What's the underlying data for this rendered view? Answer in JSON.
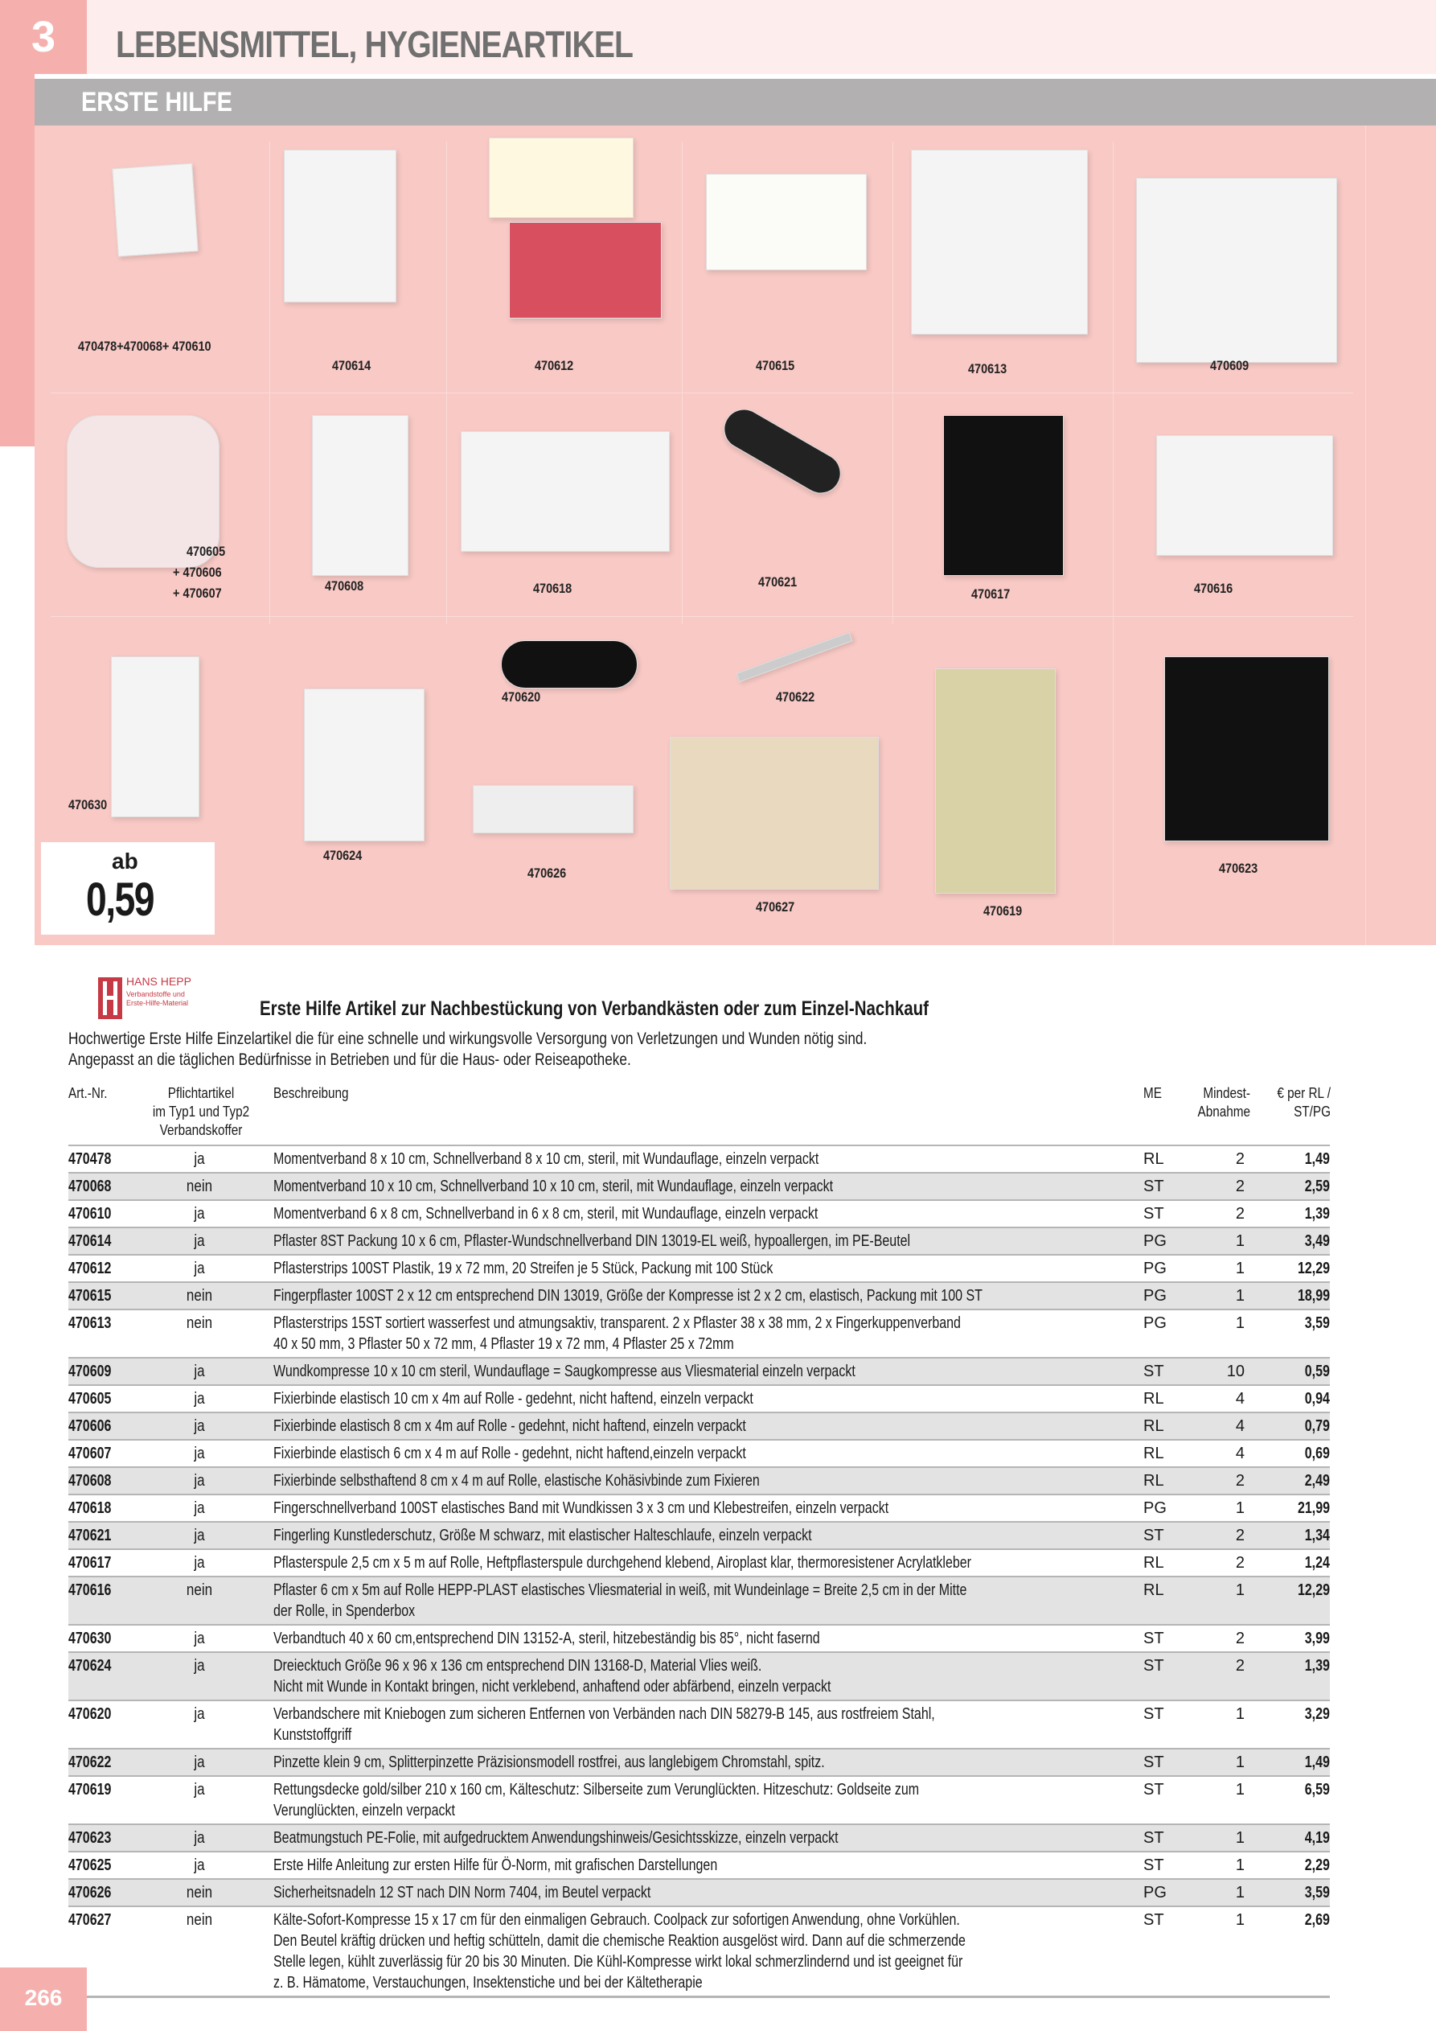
{
  "header": {
    "chapter_number": "3",
    "chapter_title": "LEBENSMITTEL, HYGIENEARTIKEL",
    "section_title": "ERSTE HILFE"
  },
  "colors": {
    "accent_pink": "#f5b0ae",
    "grid_pink": "#f8c9c5",
    "section_gray": "#b2b0b0",
    "row_shade": "#e3e3e3"
  },
  "photo_labels": {
    "r1a": "470478+470068+ 470610",
    "r1b": "470614",
    "r1c": "470612",
    "r1d": "470615",
    "r1e": "470613",
    "r1f": "470609",
    "r2a1": "470605",
    "r2a2": "+ 470606",
    "r2a3": "+ 470607",
    "r2b": "470608",
    "r2c": "470618",
    "r2d": "470621",
    "r2e": "470617",
    "r2f": "470616",
    "r3a": "470630",
    "r3b": "470624",
    "r3c": "470620",
    "r3d": "470622",
    "r3e": "470626",
    "r3f": "470627",
    "r3g": "470619",
    "r3h": "470623"
  },
  "price_badge": {
    "prefix": "ab",
    "value": "0,59"
  },
  "brand": {
    "name": "HANS HEPP",
    "tagline": "Verbandstoffe und Erste-Hilfe-Material"
  },
  "intro": {
    "title": "Erste Hilfe Artikel zur Nachbestückung von Verbandkästen oder zum Einzel-Nachkauf",
    "line1": "Hochwertige Erste Hilfe Einzelartikel die für eine schnelle und wirkungsvolle Versorgung von Verletzungen und Wunden nötig sind.",
    "line2": "Angepasst an die täglichen Bedürfnisse in Betrieben und für die Haus- oder Reiseapotheke."
  },
  "table": {
    "headers": {
      "art": "Art.-Nr.",
      "pf1": "Pflichtartikel",
      "pf2": "im Typ1 und Typ2",
      "pf3": "Verbandskoffer",
      "desc": "Beschreibung",
      "me": "ME",
      "min1": "Mindest-",
      "min2": "Abnahme",
      "pr1": "€ per RL /",
      "pr2": "ST/PG"
    },
    "rows": [
      {
        "art": "470478",
        "pf": "ja",
        "desc": [
          "Momentverband 8 x 10 cm, Schnellverband 8  x 10 cm, steril, mit Wundauflage, einzeln verpackt"
        ],
        "me": "RL",
        "min": "2",
        "price": "1,49"
      },
      {
        "art": "470068",
        "pf": "nein",
        "desc": [
          "Momentverband 10 x 10 cm, Schnellverband 10  x 10 cm, steril, mit Wundauflage, einzeln verpackt"
        ],
        "me": "ST",
        "min": "2",
        "price": "2,59"
      },
      {
        "art": "470610",
        "pf": "ja",
        "desc": [
          "Momentverband 6 x  8 cm, Schnellverband in 6  x 8 cm, steril, mit Wundauflage, einzeln verpackt"
        ],
        "me": "ST",
        "min": "2",
        "price": "1,39"
      },
      {
        "art": "470614",
        "pf": "ja",
        "desc": [
          "Pflaster 8ST Packung 10 x 6 cm, Pflaster-Wundschnellverband DIN 13019-EL weiß, hypoallergen, im PE-Beutel"
        ],
        "me": "PG",
        "min": "1",
        "price": "3,49"
      },
      {
        "art": "470612",
        "pf": "ja",
        "desc": [
          "Pflasterstrips 100ST Plastik, 19 x 72 mm, 20 Streifen je 5 Stück, Packung mit 100 Stück"
        ],
        "me": "PG",
        "min": "1",
        "price": "12,29"
      },
      {
        "art": "470615",
        "pf": "nein",
        "desc": [
          "Fingerpflaster 100ST 2 x 12 cm entsprechend DIN 13019, Größe der Kompresse ist 2 x 2 cm, elastisch, Packung mit 100 ST"
        ],
        "me": "PG",
        "min": "1",
        "price": "18,99"
      },
      {
        "art": "470613",
        "pf": "nein",
        "desc": [
          "Pflasterstrips 15ST sortiert wasserfest und atmungsaktiv, transparent. 2 x Pflaster 38 x 38 mm, 2 x Fingerkuppenverband",
          "40 x 50 mm, 3 Pflaster 50 x 72 mm, 4 Pflaster 19 x 72 mm, 4 Pflaster 25 x 72mm"
        ],
        "me": "PG",
        "min": "1",
        "price": "3,59"
      },
      {
        "art": "470609",
        "pf": "ja",
        "desc": [
          "Wundkompresse 10 x 10 cm steril, Wundauflage = Saugkompresse aus Vliesmaterial einzeln verpackt"
        ],
        "me": "ST",
        "min": "10",
        "price": "0,59"
      },
      {
        "art": "470605",
        "pf": "ja",
        "desc": [
          "Fixierbinde elastisch 10 cm x 4m auf Rolle  - gedehnt, nicht haftend, einzeln verpackt"
        ],
        "me": "RL",
        "min": "4",
        "price": "0,94"
      },
      {
        "art": "470606",
        "pf": "ja",
        "desc": [
          "Fixierbinde elastisch 8 cm x 4m auf Rolle  - gedehnt, nicht haftend, einzeln verpackt"
        ],
        "me": "RL",
        "min": "4",
        "price": "0,79"
      },
      {
        "art": "470607",
        "pf": "ja",
        "desc": [
          "Fixierbinde elastisch 6 cm x 4 m auf Rolle  - gedehnt, nicht haftend,einzeln verpackt"
        ],
        "me": "RL",
        "min": "4",
        "price": "0,69"
      },
      {
        "art": "470608",
        "pf": "ja",
        "desc": [
          "Fixierbinde selbsthaftend 8 cm x 4 m auf Rolle, elastische Kohäsivbinde zum Fixieren"
        ],
        "me": "RL",
        "min": "2",
        "price": "2,49"
      },
      {
        "art": "470618",
        "pf": "ja",
        "desc": [
          "Fingerschnellverband 100ST elastisches Band mit Wundkissen 3 x 3 cm und Klebestreifen, einzeln verpackt"
        ],
        "me": "PG",
        "min": "1",
        "price": "21,99"
      },
      {
        "art": "470621",
        "pf": "ja",
        "desc": [
          "Fingerling Kunstlederschutz, Größe M schwarz, mit elastischer Halteschlaufe, einzeln verpackt"
        ],
        "me": "ST",
        "min": "2",
        "price": "1,34"
      },
      {
        "art": "470617",
        "pf": "ja",
        "desc": [
          "Pflasterspule 2,5 cm x 5 m auf Rolle, Heftpflasterspule durchgehend klebend, Airoplast klar, thermoresistener Acrylatkleber"
        ],
        "me": "RL",
        "min": "2",
        "price": "1,24"
      },
      {
        "art": "470616",
        "pf": "nein",
        "desc": [
          "Pflaster 6 cm x 5m auf Rolle HEPP-PLAST elastisches Vliesmaterial in weiß, mit Wundeinlage = Breite 2,5 cm in der Mitte",
          "der Rolle, in Spenderbox"
        ],
        "me": "RL",
        "min": "1",
        "price": "12,29"
      },
      {
        "art": "470630",
        "pf": "ja",
        "desc": [
          "Verbandtuch 40 x 60 cm,entsprechend  DIN 13152-A, steril, hitzebeständig bis 85°, nicht fasernd"
        ],
        "me": "ST",
        "min": "2",
        "price": "3,99"
      },
      {
        "art": "470624",
        "pf": "ja",
        "desc": [
          "Dreiecktuch Größe 96 x 96 x 136 cm entsprechend DIN 13168-D, Material Vlies weiß.",
          "Nicht mit Wunde in Kontakt bringen, nicht verklebend, anhaftend oder abfärbend, einzeln verpackt"
        ],
        "me": "ST",
        "min": "2",
        "price": "1,39"
      },
      {
        "art": "470620",
        "pf": "ja",
        "desc": [
          "Verbandschere mit Kniebogen zum sicheren Entfernen von Verbänden nach DIN 58279-B 145, aus rostfreiem Stahl,",
          "Kunststoffgriff"
        ],
        "me": "ST",
        "min": "1",
        "price": "3,29"
      },
      {
        "art": "470622",
        "pf": "ja",
        "desc": [
          "Pinzette klein 9 cm, Splitterpinzette Präzisionsmodell rostfrei, aus langlebigem Chromstahl, spitz."
        ],
        "me": "ST",
        "min": "1",
        "price": "1,49"
      },
      {
        "art": "470619",
        "pf": "ja",
        "desc": [
          "Rettungsdecke gold/silber 210 x 160 cm, Kälteschutz: Silberseite zum Verunglückten. Hitzeschutz: Goldseite zum",
          "Verunglückten, einzeln verpackt"
        ],
        "me": "ST",
        "min": "1",
        "price": "6,59"
      },
      {
        "art": "470623",
        "pf": "ja",
        "desc": [
          "Beatmungstuch PE-Folie, mit aufgedrucktem Anwendungshinweis/Gesichtsskizze, einzeln verpackt"
        ],
        "me": "ST",
        "min": "1",
        "price": "4,19"
      },
      {
        "art": "470625",
        "pf": "ja",
        "desc": [
          "Erste Hilfe Anleitung zur ersten Hilfe für Ö-Norm, mit grafischen Darstellungen"
        ],
        "me": "ST",
        "min": "1",
        "price": "2,29"
      },
      {
        "art": "470626",
        "pf": "nein",
        "desc": [
          "Sicherheitsnadeln 12 ST nach DIN Norm 7404, im Beutel verpackt"
        ],
        "me": "PG",
        "min": "1",
        "price": "3,59"
      },
      {
        "art": "470627",
        "pf": "nein",
        "desc": [
          "Kälte-Sofort-Kompresse 15 x 17 cm für den einmaligen Gebrauch. Coolpack zur sofortigen Anwendung, ohne Vorkühlen.",
          "Den Beutel kräftig drücken und heftig schütteln, damit die chemische Reaktion ausgelöst wird. Dann auf die schmerzende",
          "Stelle legen, kühlt zuverlässig für 20 bis 30 Minuten. Die Kühl-Kompresse wirkt lokal schmerzlindernd und ist geeignet für",
          "z. B. Hämatome, Verstauchungen, Insektenstiche und bei der Kältetherapie"
        ],
        "me": "ST",
        "min": "1",
        "price": "2,69"
      }
    ]
  },
  "footer": {
    "page_number": "266"
  }
}
